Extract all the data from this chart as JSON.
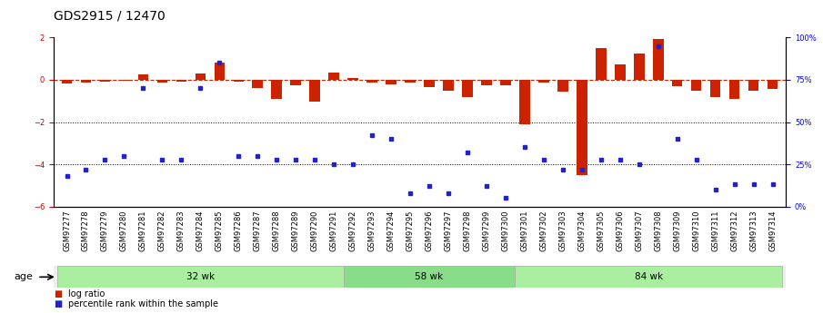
{
  "title": "GDS2915 / 12470",
  "samples": [
    "GSM97277",
    "GSM97278",
    "GSM97279",
    "GSM97280",
    "GSM97281",
    "GSM97282",
    "GSM97283",
    "GSM97284",
    "GSM97285",
    "GSM97286",
    "GSM97287",
    "GSM97288",
    "GSM97289",
    "GSM97290",
    "GSM97291",
    "GSM97292",
    "GSM97293",
    "GSM97294",
    "GSM97295",
    "GSM97296",
    "GSM97297",
    "GSM97298",
    "GSM97299",
    "GSM97300",
    "GSM97301",
    "GSM97302",
    "GSM97303",
    "GSM97304",
    "GSM97305",
    "GSM97306",
    "GSM97307",
    "GSM97308",
    "GSM97309",
    "GSM97310",
    "GSM97311",
    "GSM97312",
    "GSM97313",
    "GSM97314"
  ],
  "log_ratio": [
    -0.18,
    -0.12,
    -0.1,
    -0.05,
    0.25,
    -0.12,
    -0.08,
    0.3,
    0.8,
    -0.1,
    -0.38,
    -0.92,
    -0.25,
    -1.05,
    0.35,
    0.08,
    -0.12,
    -0.2,
    -0.15,
    -0.35,
    -0.5,
    -0.82,
    -0.28,
    -0.28,
    -2.1,
    -0.15,
    -0.55,
    -4.5,
    1.5,
    0.75,
    1.25,
    1.95,
    -0.32,
    -0.5,
    -0.82,
    -0.9,
    -0.5,
    -0.42
  ],
  "percentile_rank": [
    18,
    22,
    28,
    30,
    70,
    28,
    28,
    70,
    85,
    30,
    30,
    28,
    28,
    28,
    25,
    25,
    42,
    40,
    8,
    12,
    8,
    32,
    12,
    5,
    35,
    28,
    22,
    22,
    28,
    28,
    25,
    95,
    40,
    28,
    10,
    13,
    13,
    13
  ],
  "groups": [
    {
      "label": "32 wk",
      "start": 0,
      "end": 15
    },
    {
      "label": "58 wk",
      "start": 15,
      "end": 24
    },
    {
      "label": "84 wk",
      "start": 24,
      "end": 38
    }
  ],
  "group_colors": [
    "#aaeea0",
    "#88dd88",
    "#aaeea0"
  ],
  "bar_color": "#CC2200",
  "dot_color": "#2222CC",
  "ylim_left": [
    -6,
    2
  ],
  "ylim_right": [
    0,
    100
  ],
  "yticks_left": [
    -6,
    -4,
    -2,
    0,
    2
  ],
  "yticks_right": [
    0,
    25,
    50,
    75,
    100
  ],
  "ytick_labels_right": [
    "0%",
    "25%",
    "50%",
    "75%",
    "100%"
  ],
  "dotted_lines": [
    -2,
    -4
  ],
  "age_label": "age",
  "legend_log_ratio": "log ratio",
  "legend_percentile": "percentile rank within the sample",
  "title_fontsize": 10,
  "tick_fontsize": 6,
  "background_color": "#ffffff",
  "plot_bg_color": "#ffffff"
}
